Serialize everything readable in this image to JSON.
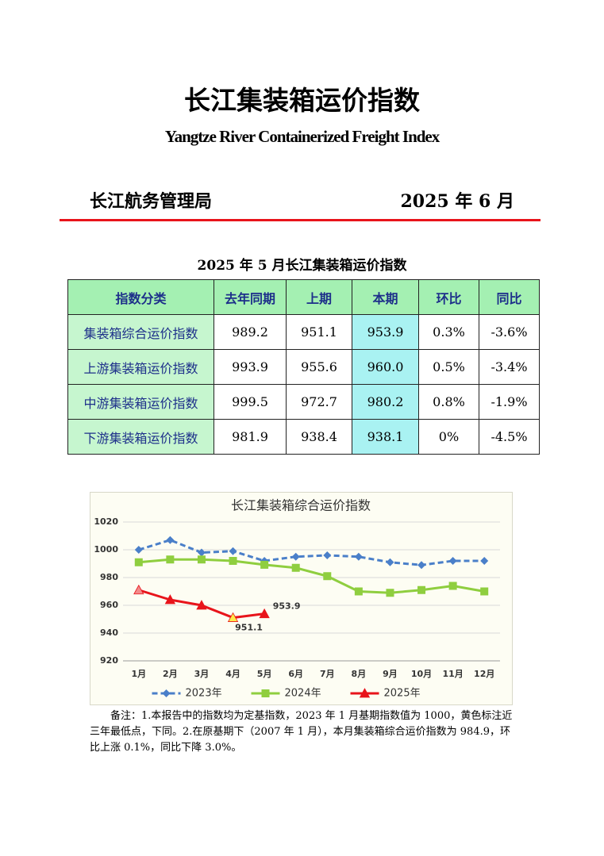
{
  "header": {
    "title": "长江集装箱运价指数",
    "subtitle": "Yangtze River Containerized Freight Index",
    "issuer": "长江航务管理局",
    "date": "2025 年 6 月"
  },
  "table": {
    "title": "2025 年 5 月长江集装箱运价指数",
    "columns": [
      "指数分类",
      "去年同期",
      "上期",
      "本期",
      "环比",
      "同比"
    ],
    "rows": [
      [
        "集装箱综合运价指数",
        "989.2",
        "951.1",
        "953.9",
        "0.3%",
        "-3.6%"
      ],
      [
        "上游集装箱运价指数",
        "993.9",
        "955.6",
        "960.0",
        "0.5%",
        "-3.4%"
      ],
      [
        "中游集装箱运价指数",
        "999.5",
        "972.7",
        "980.2",
        "0.8%",
        "-1.9%"
      ],
      [
        "下游集装箱运价指数",
        "981.9",
        "938.4",
        "938.1",
        "0%",
        "-4.5%"
      ]
    ]
  },
  "chart_data": {
    "type": "line",
    "title": "长江集装箱综合运价指数",
    "categories": [
      "1月",
      "2月",
      "3月",
      "4月",
      "5月",
      "6月",
      "7月",
      "8月",
      "9月",
      "10月",
      "11月",
      "12月"
    ],
    "series": [
      {
        "name": "2023年",
        "color": "#4a7fc9",
        "dashed": true,
        "marker": "diamond",
        "values": [
          1000,
          1007,
          998,
          999,
          992,
          995,
          996,
          995,
          991,
          989,
          992,
          992
        ]
      },
      {
        "name": "2024年",
        "color": "#8fce3f",
        "dashed": false,
        "marker": "square",
        "values": [
          991,
          993,
          993,
          992,
          989.2,
          987,
          981,
          970,
          969,
          971,
          974,
          970
        ]
      },
      {
        "name": "2025年",
        "color": "#e8141b",
        "dashed": false,
        "marker": "triangle",
        "values": [
          971,
          964,
          960,
          951.1,
          953.9,
          null,
          null,
          null,
          null,
          null,
          null,
          null
        ],
        "point_colors": [
          "#f28a8a",
          "#e8141b",
          "#e8141b",
          "#ffe94a",
          "#e8141b",
          null,
          null,
          null,
          null,
          null,
          null,
          null
        ],
        "value_labels": [
          null,
          null,
          null,
          "951.1",
          "953.9",
          null,
          null,
          null,
          null,
          null,
          null,
          null
        ]
      }
    ],
    "ylim": [
      920,
      1020
    ],
    "yticks": [
      920,
      940,
      960,
      980,
      1000,
      1020
    ],
    "grid": true,
    "legend": "bottom"
  },
  "note": "备注：1.本报告中的指数均为定基指数，2023 年 1 月基期指数值为 1000，黄色标注近三年最低点，下同。2.在原基期下（2007 年 1 月），本月集装箱综合运价指数为 984.9，环比上涨 0.1%，同比下降 3.0%。"
}
